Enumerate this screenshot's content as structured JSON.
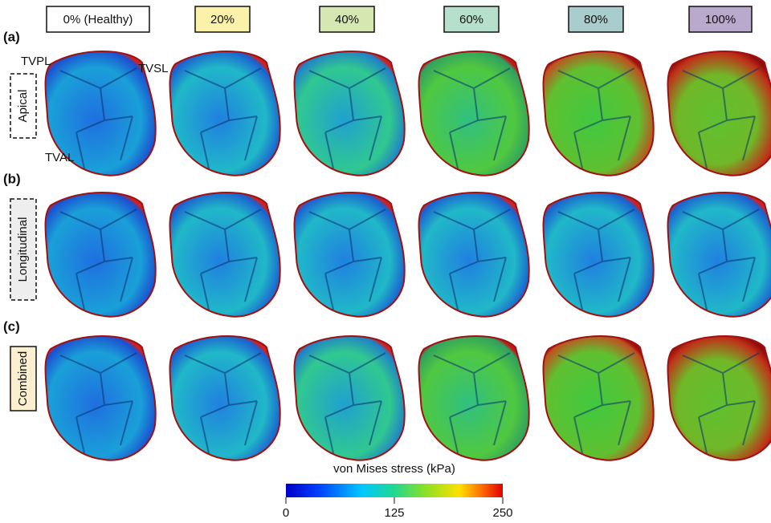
{
  "columns": [
    "0% (Healthy)",
    "20%",
    "40%",
    "60%",
    "80%",
    "100%"
  ],
  "rows": [
    {
      "tag": "(a)",
      "label": "Apical"
    },
    {
      "tag": "(b)",
      "label": "Longitudinal"
    },
    {
      "tag": "(c)",
      "label": "Combined"
    }
  ],
  "annotations": {
    "tvpl": "TVPL",
    "tvsl": "TVSL",
    "tval": "TVAL"
  },
  "colorbar": {
    "title": "von Mises stress (kPa)",
    "lim": [
      0,
      250
    ],
    "ticks": [
      0,
      125,
      250
    ]
  }
}
